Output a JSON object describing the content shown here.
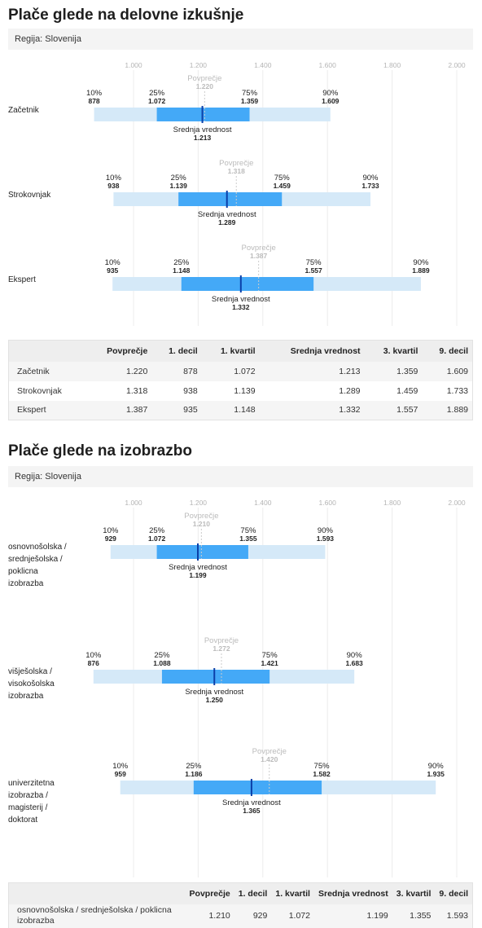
{
  "experience": {
    "title": "Plače glede na delovne izkušnje",
    "region": "Regija: Slovenija"
  },
  "education": {
    "title": "Plače glede na izobrazbo",
    "region": "Regija: Slovenija"
  },
  "labels": {
    "mean": "Povprečje",
    "median": "Srednja vrednost",
    "p10": "10%",
    "p25": "25%",
    "p75": "75%",
    "p90": "90%"
  },
  "table_headers": [
    "",
    "Povprečje",
    "1. decil",
    "1. kvartil",
    "Srednja vrednost",
    "3. kvartil",
    "9. decil"
  ],
  "colors": {
    "range_light": "#d5e9f8",
    "range_mid": "#44a9f7",
    "median_line": "#0b3fa8",
    "mean_line": "#cccccc",
    "mean_text": "#bbbbbb"
  },
  "chart_data": [
    {
      "type": "boxplot",
      "axis_ticks": [
        1000,
        1200,
        1400,
        1600,
        1800,
        2000
      ],
      "axis_tick_labels": [
        "1.000",
        "1.200",
        "1.400",
        "1.600",
        "1.800",
        "2.000"
      ],
      "xlim": [
        790,
        2000
      ],
      "grid": true,
      "categories": [
        {
          "label": [
            "Začetnik"
          ],
          "table_label": [
            "Začetnik"
          ],
          "mean": 1220,
          "p10": 878,
          "p25": 1072,
          "median": 1213,
          "p75": 1359,
          "p90": 1609,
          "text": {
            "mean": "1.220",
            "p10": "878",
            "p25": "1.072",
            "median": "1.213",
            "p75": "1.359",
            "p90": "1.609"
          }
        },
        {
          "label": [
            "Strokovnjak"
          ],
          "table_label": [
            "Strokovnjak"
          ],
          "mean": 1318,
          "p10": 938,
          "p25": 1139,
          "median": 1289,
          "p75": 1459,
          "p90": 1733,
          "text": {
            "mean": "1.318",
            "p10": "938",
            "p25": "1.139",
            "median": "1.289",
            "p75": "1.459",
            "p90": "1.733"
          }
        },
        {
          "label": [
            "Ekspert"
          ],
          "table_label": [
            "Ekspert"
          ],
          "mean": 1387,
          "p10": 935,
          "p25": 1148,
          "median": 1332,
          "p75": 1557,
          "p90": 1889,
          "text": {
            "mean": "1.387",
            "p10": "935",
            "p25": "1.148",
            "median": "1.332",
            "p75": "1.557",
            "p90": "1.889"
          }
        }
      ]
    },
    {
      "type": "boxplot",
      "axis_ticks": [
        1000,
        1200,
        1400,
        1600,
        1800,
        2000
      ],
      "axis_tick_labels": [
        "1.000",
        "1.200",
        "1.400",
        "1.600",
        "1.800",
        "2.000"
      ],
      "xlim": [
        790,
        2000
      ],
      "grid": true,
      "categories": [
        {
          "label": [
            "osnovnošolska /",
            "srednješolska /",
            "poklicna",
            "izobrazba"
          ],
          "table_label": [
            "osnovnošolska / srednješolska / poklicna",
            "izobrazba"
          ],
          "mean": 1210,
          "p10": 929,
          "p25": 1072,
          "median": 1199,
          "p75": 1355,
          "p90": 1593,
          "text": {
            "mean": "1.210",
            "p10": "929",
            "p25": "1.072",
            "median": "1.199",
            "p75": "1.355",
            "p90": "1.593"
          }
        },
        {
          "label": [
            "višješolska /",
            "visokošolska",
            "izobrazba"
          ],
          "table_label": [],
          "mean": 1272,
          "p10": 876,
          "p25": 1088,
          "median": 1250,
          "p75": 1421,
          "p90": 1683,
          "text": {
            "mean": "1.272",
            "p10": "876",
            "p25": "1.088",
            "median": "1.250",
            "p75": "1.421",
            "p90": "1.683"
          }
        },
        {
          "label": [
            "univerzitetna",
            "izobrazba /",
            "magisterij /",
            "doktorat"
          ],
          "table_label": [],
          "mean": 1420,
          "p10": 959,
          "p25": 1186,
          "median": 1365,
          "p75": 1582,
          "p90": 1935,
          "text": {
            "mean": "1.420",
            "p10": "959",
            "p25": "1.186",
            "median": "1.365",
            "p75": "1.582",
            "p90": "1.935"
          }
        }
      ]
    }
  ]
}
